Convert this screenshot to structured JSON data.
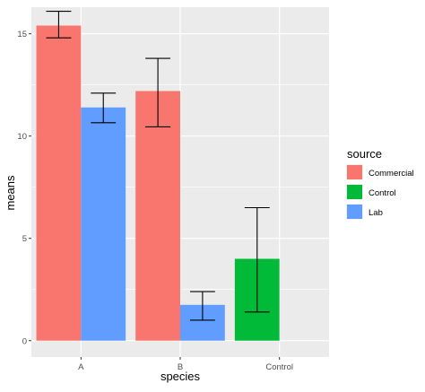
{
  "chart_data": {
    "type": "bar",
    "categories": [
      "A",
      "B",
      "Control"
    ],
    "x_label": "species",
    "y_label": "means",
    "y_ticks": [
      0,
      5,
      10,
      15
    ],
    "y_range": [
      -0.8,
      16.3
    ],
    "grid": true,
    "legend_position": "right",
    "legend_title": "source",
    "series": [
      {
        "name": "Commercial",
        "color": "#F8766D",
        "points": [
          {
            "category": "A",
            "value": 15.4,
            "error_low": 14.8,
            "error_high": 16.1
          },
          {
            "category": "B",
            "value": 12.2,
            "error_low": 10.45,
            "error_high": 13.8
          }
        ]
      },
      {
        "name": "Control",
        "color": "#00BA38",
        "points": [
          {
            "category": "Control",
            "value": 4.0,
            "error_low": 1.4,
            "error_high": 6.5
          }
        ]
      },
      {
        "name": "Lab",
        "color": "#619CFF",
        "points": [
          {
            "category": "A",
            "value": 11.4,
            "error_low": 10.65,
            "error_high": 12.1
          },
          {
            "category": "B",
            "value": 1.75,
            "error_low": 1.0,
            "error_high": 2.4
          }
        ]
      }
    ]
  },
  "colors": {
    "panel_background": "#EBEBEB",
    "grid_major": "#FFFFFF",
    "tick_text": "#4D4D4D",
    "axis_title": "#000000",
    "error_bar": "#000000"
  }
}
